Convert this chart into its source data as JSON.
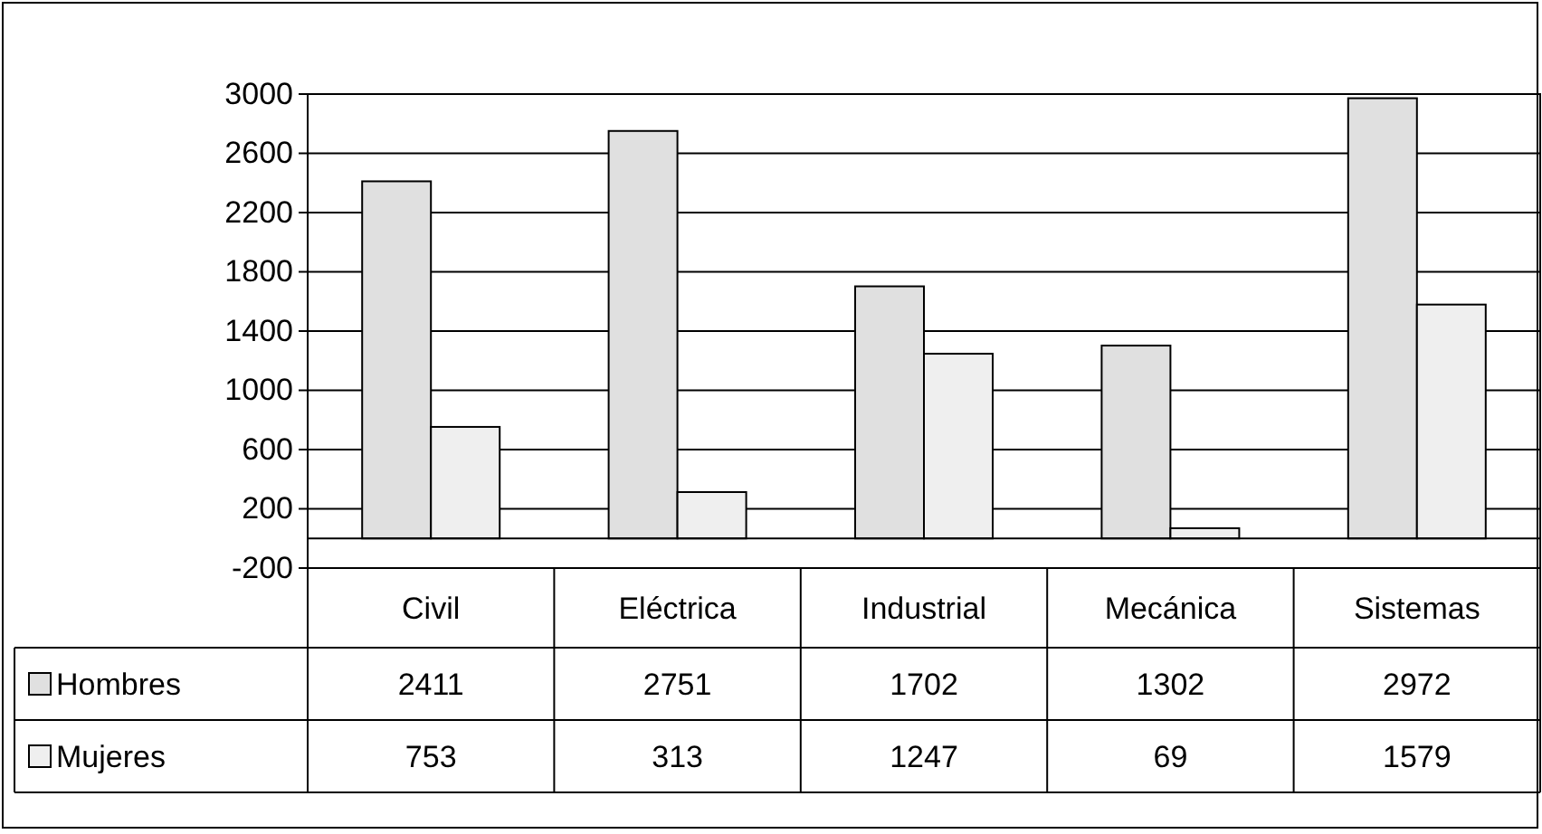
{
  "chart_data": {
    "type": "bar",
    "categories": [
      "Civil",
      "Eléctrica",
      "Industrial",
      "Mecánica",
      "Sistemas"
    ],
    "series": [
      {
        "name": "Hombres",
        "color": "#e0e0e0",
        "values": [
          2411,
          2751,
          1702,
          1302,
          2972
        ]
      },
      {
        "name": "Mujeres",
        "color": "#efefef",
        "values": [
          753,
          313,
          1247,
          69,
          1579
        ]
      }
    ],
    "ylim": [
      -200,
      3000
    ],
    "yticks": [
      -200,
      200,
      600,
      1000,
      1400,
      1800,
      2200,
      2600,
      3000
    ],
    "grid": "y",
    "legend": "bottom",
    "data_labels": true
  }
}
